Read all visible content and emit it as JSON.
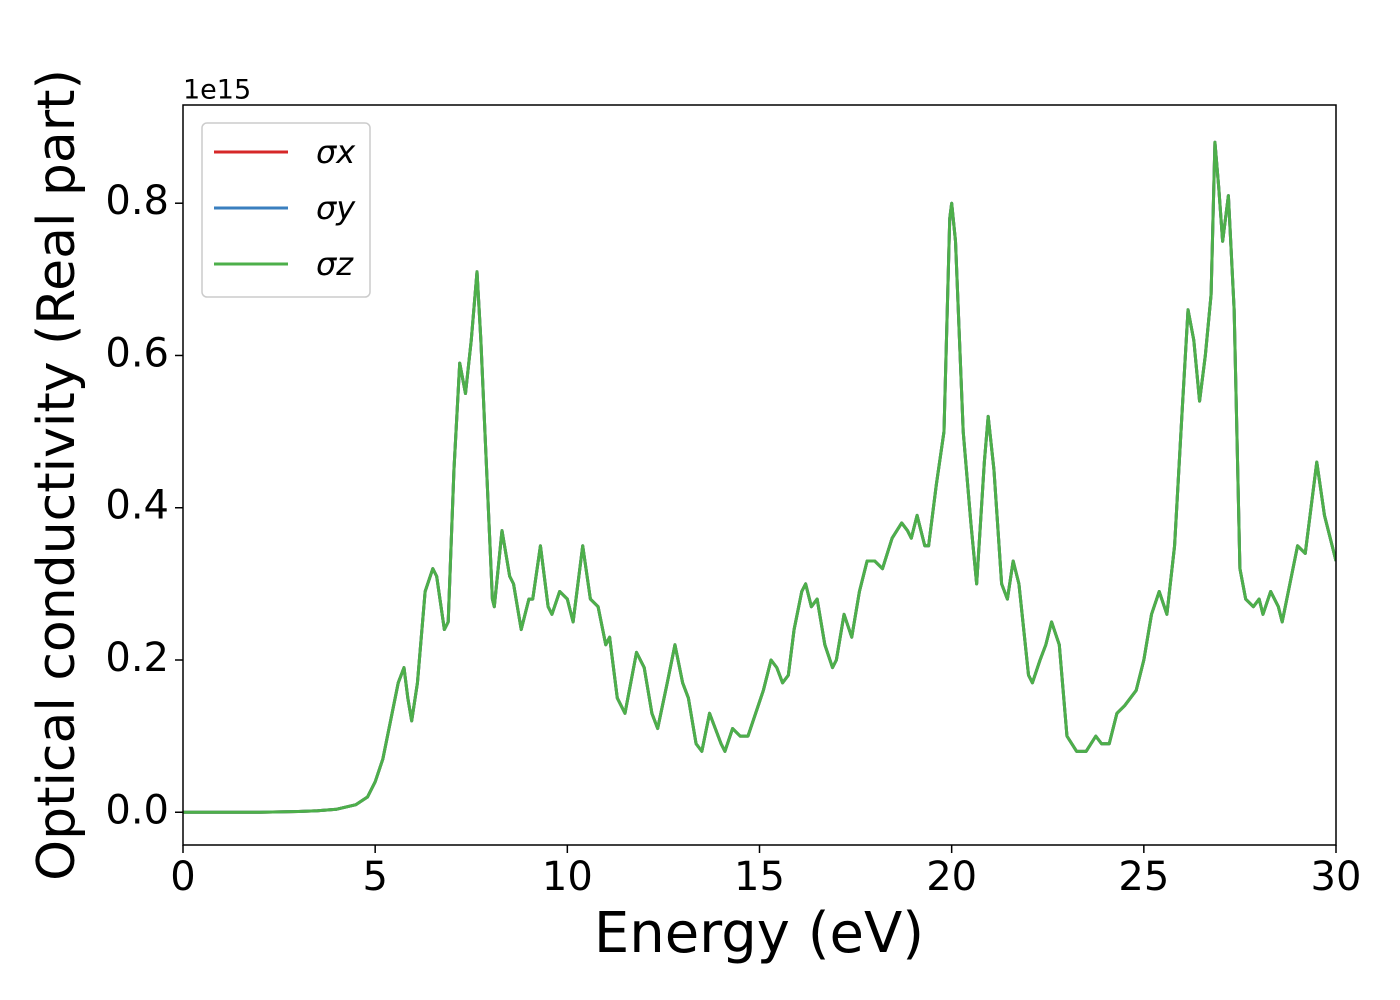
{
  "chart_data": {
    "type": "line",
    "xlabel": "Energy (eV)",
    "ylabel": "Optical conductivity (Real part)",
    "y_offset_label": "1e15",
    "x": [
      0,
      1,
      2,
      3,
      3.5,
      4,
      4.5,
      4.8,
      5,
      5.2,
      5.4,
      5.6,
      5.75,
      5.85,
      5.95,
      6.1,
      6.3,
      6.5,
      6.6,
      6.8,
      6.9,
      7.05,
      7.2,
      7.35,
      7.5,
      7.65,
      7.75,
      7.9,
      8.05,
      8.1,
      8.3,
      8.5,
      8.6,
      8.8,
      9.0,
      9.1,
      9.3,
      9.5,
      9.6,
      9.8,
      10.0,
      10.15,
      10.4,
      10.6,
      10.8,
      11.0,
      11.1,
      11.3,
      11.5,
      11.8,
      12.0,
      12.2,
      12.35,
      12.6,
      12.8,
      13.0,
      13.15,
      13.35,
      13.5,
      13.7,
      13.85,
      14.0,
      14.1,
      14.3,
      14.5,
      14.7,
      14.9,
      15.1,
      15.3,
      15.45,
      15.6,
      15.75,
      15.9,
      16.1,
      16.2,
      16.35,
      16.5,
      16.7,
      16.9,
      17.0,
      17.2,
      17.4,
      17.6,
      17.8,
      18.0,
      18.2,
      18.45,
      18.7,
      18.85,
      18.95,
      19.1,
      19.3,
      19.4,
      19.6,
      19.8,
      19.95,
      20.0,
      20.1,
      20.3,
      20.5,
      20.65,
      20.85,
      20.95,
      21.1,
      21.3,
      21.45,
      21.6,
      21.75,
      22.0,
      22.1,
      22.3,
      22.45,
      22.6,
      22.8,
      23.0,
      23.25,
      23.5,
      23.75,
      23.9,
      24.1,
      24.3,
      24.5,
      24.8,
      25.0,
      25.2,
      25.4,
      25.6,
      25.8,
      26.0,
      26.15,
      26.3,
      26.45,
      26.6,
      26.75,
      26.85,
      26.95,
      27.05,
      27.2,
      27.35,
      27.5,
      27.65,
      27.85,
      28.0,
      28.1,
      28.3,
      28.5,
      28.6,
      28.8,
      29.0,
      29.2,
      29.5,
      29.7,
      29.9,
      30.0
    ],
    "series": [
      {
        "name": "σx",
        "color": "#d62728",
        "values": [
          0,
          0,
          0,
          0.001,
          0.002,
          0.004,
          0.01,
          0.02,
          0.04,
          0.07,
          0.12,
          0.17,
          0.19,
          0.15,
          0.12,
          0.17,
          0.29,
          0.32,
          0.31,
          0.24,
          0.25,
          0.45,
          0.59,
          0.55,
          0.62,
          0.71,
          0.62,
          0.45,
          0.28,
          0.27,
          0.37,
          0.31,
          0.3,
          0.24,
          0.28,
          0.28,
          0.35,
          0.27,
          0.26,
          0.29,
          0.28,
          0.25,
          0.35,
          0.28,
          0.27,
          0.22,
          0.23,
          0.15,
          0.13,
          0.21,
          0.19,
          0.13,
          0.11,
          0.17,
          0.22,
          0.17,
          0.15,
          0.09,
          0.08,
          0.13,
          0.11,
          0.09,
          0.08,
          0.11,
          0.1,
          0.1,
          0.13,
          0.16,
          0.2,
          0.19,
          0.17,
          0.18,
          0.24,
          0.29,
          0.3,
          0.27,
          0.28,
          0.22,
          0.19,
          0.2,
          0.26,
          0.23,
          0.29,
          0.33,
          0.33,
          0.32,
          0.36,
          0.38,
          0.37,
          0.36,
          0.39,
          0.35,
          0.35,
          0.43,
          0.5,
          0.78,
          0.8,
          0.75,
          0.5,
          0.38,
          0.3,
          0.46,
          0.52,
          0.45,
          0.3,
          0.28,
          0.33,
          0.3,
          0.18,
          0.17,
          0.2,
          0.22,
          0.25,
          0.22,
          0.1,
          0.08,
          0.08,
          0.1,
          0.09,
          0.09,
          0.13,
          0.14,
          0.16,
          0.2,
          0.26,
          0.29,
          0.26,
          0.35,
          0.53,
          0.66,
          0.62,
          0.54,
          0.6,
          0.68,
          0.88,
          0.82,
          0.75,
          0.81,
          0.66,
          0.32,
          0.28,
          0.27,
          0.28,
          0.26,
          0.29,
          0.27,
          0.25,
          0.3,
          0.35,
          0.34,
          0.46,
          0.39,
          0.35,
          0.33
        ]
      },
      {
        "name": "σy",
        "color": "#3a7fbf",
        "values": [
          0,
          0,
          0,
          0.001,
          0.002,
          0.004,
          0.01,
          0.02,
          0.04,
          0.07,
          0.12,
          0.17,
          0.19,
          0.15,
          0.12,
          0.17,
          0.29,
          0.32,
          0.31,
          0.24,
          0.25,
          0.45,
          0.59,
          0.55,
          0.62,
          0.71,
          0.62,
          0.45,
          0.28,
          0.27,
          0.37,
          0.31,
          0.3,
          0.24,
          0.28,
          0.28,
          0.35,
          0.27,
          0.26,
          0.29,
          0.28,
          0.25,
          0.35,
          0.28,
          0.27,
          0.22,
          0.23,
          0.15,
          0.13,
          0.21,
          0.19,
          0.13,
          0.11,
          0.17,
          0.22,
          0.17,
          0.15,
          0.09,
          0.08,
          0.13,
          0.11,
          0.09,
          0.08,
          0.11,
          0.1,
          0.1,
          0.13,
          0.16,
          0.2,
          0.19,
          0.17,
          0.18,
          0.24,
          0.29,
          0.3,
          0.27,
          0.28,
          0.22,
          0.19,
          0.2,
          0.26,
          0.23,
          0.29,
          0.33,
          0.33,
          0.32,
          0.36,
          0.38,
          0.37,
          0.36,
          0.39,
          0.35,
          0.35,
          0.43,
          0.5,
          0.78,
          0.8,
          0.75,
          0.5,
          0.38,
          0.3,
          0.46,
          0.52,
          0.45,
          0.3,
          0.28,
          0.33,
          0.3,
          0.18,
          0.17,
          0.2,
          0.22,
          0.25,
          0.22,
          0.1,
          0.08,
          0.08,
          0.1,
          0.09,
          0.09,
          0.13,
          0.14,
          0.16,
          0.2,
          0.26,
          0.29,
          0.26,
          0.35,
          0.53,
          0.66,
          0.62,
          0.54,
          0.6,
          0.68,
          0.88,
          0.82,
          0.75,
          0.81,
          0.66,
          0.32,
          0.28,
          0.27,
          0.28,
          0.26,
          0.29,
          0.27,
          0.25,
          0.3,
          0.35,
          0.34,
          0.46,
          0.39,
          0.35,
          0.33
        ]
      },
      {
        "name": "σz",
        "color": "#4daf4a",
        "values": [
          0,
          0,
          0,
          0.001,
          0.002,
          0.004,
          0.01,
          0.02,
          0.04,
          0.07,
          0.12,
          0.17,
          0.19,
          0.15,
          0.12,
          0.17,
          0.29,
          0.32,
          0.31,
          0.24,
          0.25,
          0.45,
          0.59,
          0.55,
          0.62,
          0.71,
          0.62,
          0.45,
          0.28,
          0.27,
          0.37,
          0.31,
          0.3,
          0.24,
          0.28,
          0.28,
          0.35,
          0.27,
          0.26,
          0.29,
          0.28,
          0.25,
          0.35,
          0.28,
          0.27,
          0.22,
          0.23,
          0.15,
          0.13,
          0.21,
          0.19,
          0.13,
          0.11,
          0.17,
          0.22,
          0.17,
          0.15,
          0.09,
          0.08,
          0.13,
          0.11,
          0.09,
          0.08,
          0.11,
          0.1,
          0.1,
          0.13,
          0.16,
          0.2,
          0.19,
          0.17,
          0.18,
          0.24,
          0.29,
          0.3,
          0.27,
          0.28,
          0.22,
          0.19,
          0.2,
          0.26,
          0.23,
          0.29,
          0.33,
          0.33,
          0.32,
          0.36,
          0.38,
          0.37,
          0.36,
          0.39,
          0.35,
          0.35,
          0.43,
          0.5,
          0.78,
          0.8,
          0.75,
          0.5,
          0.38,
          0.3,
          0.46,
          0.52,
          0.45,
          0.3,
          0.28,
          0.33,
          0.3,
          0.18,
          0.17,
          0.2,
          0.22,
          0.25,
          0.22,
          0.1,
          0.08,
          0.08,
          0.1,
          0.09,
          0.09,
          0.13,
          0.14,
          0.16,
          0.2,
          0.26,
          0.29,
          0.26,
          0.35,
          0.53,
          0.66,
          0.62,
          0.54,
          0.6,
          0.68,
          0.88,
          0.82,
          0.75,
          0.81,
          0.66,
          0.32,
          0.28,
          0.27,
          0.28,
          0.26,
          0.29,
          0.27,
          0.25,
          0.3,
          0.35,
          0.34,
          0.46,
          0.39,
          0.35,
          0.33
        ]
      }
    ],
    "xlim": [
      0,
      30
    ],
    "xticks": [
      0,
      5,
      10,
      15,
      20,
      25,
      30
    ],
    "ylim": [
      -0.043,
      0.929
    ],
    "yticks": [
      {
        "value": 0,
        "label": "0.0"
      },
      {
        "value": 0.2,
        "label": "0.2"
      },
      {
        "value": 0.4,
        "label": "0.4"
      },
      {
        "value": 0.6,
        "label": "0.6"
      },
      {
        "value": 0.8,
        "label": "0.8"
      }
    ],
    "legend": "upper left"
  }
}
